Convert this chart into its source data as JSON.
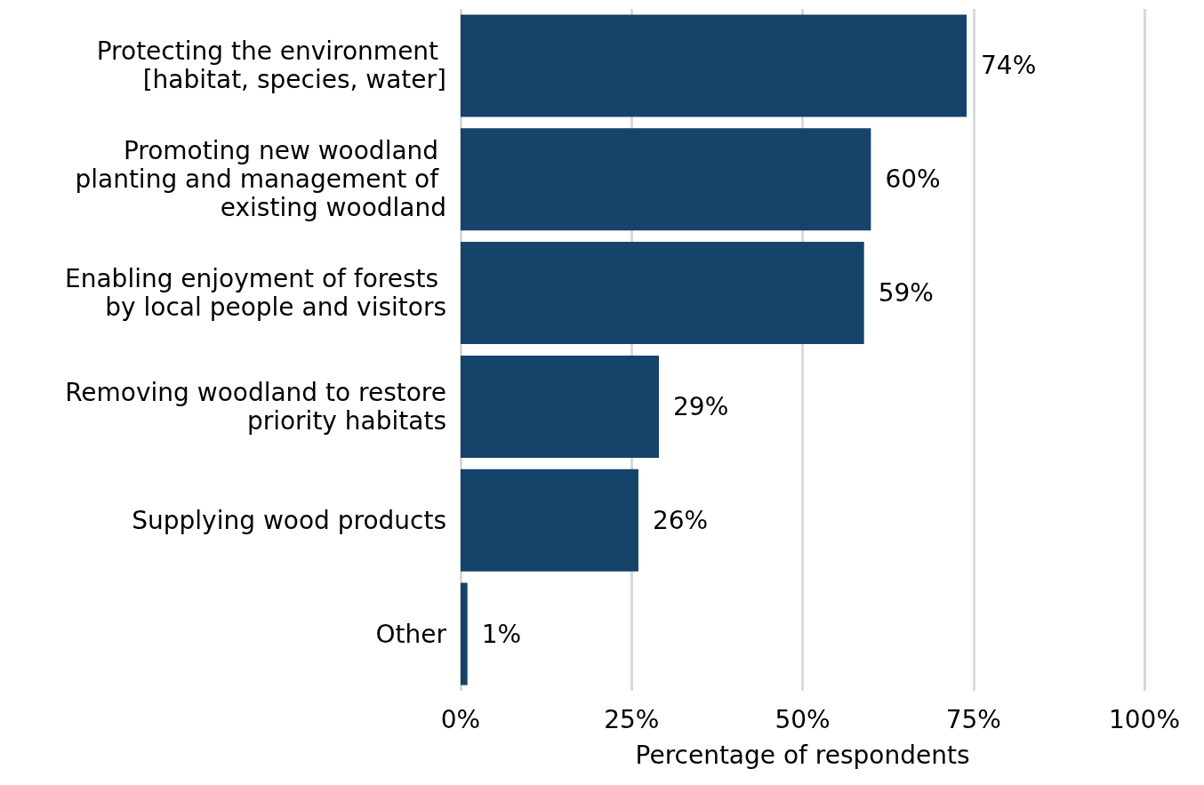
{
  "chart_data": {
    "type": "bar",
    "orientation": "horizontal",
    "xlabel": "Percentage of respondents",
    "categories": [
      "Protecting the environment [habitat, species, water]",
      "Promoting new woodland planting and management of existing woodland",
      "Enabling enjoyment of forests by local people and visitors",
      "Removing woodland to restore priority habitats",
      "Supplying wood products",
      "Other"
    ],
    "values": [
      74,
      60,
      59,
      29,
      26,
      1
    ],
    "value_labels": [
      "74%",
      "60%",
      "59%",
      "29%",
      "26%",
      "1%"
    ],
    "color": "#154369",
    "xlim": [
      0,
      100
    ],
    "xticks": [
      {
        "value": 0,
        "label": "0%"
      },
      {
        "value": 25,
        "label": "25%"
      },
      {
        "value": 50,
        "label": "50%"
      },
      {
        "value": 75,
        "label": "75%"
      },
      {
        "value": 100,
        "label": "100%"
      }
    ],
    "grid": "x"
  }
}
